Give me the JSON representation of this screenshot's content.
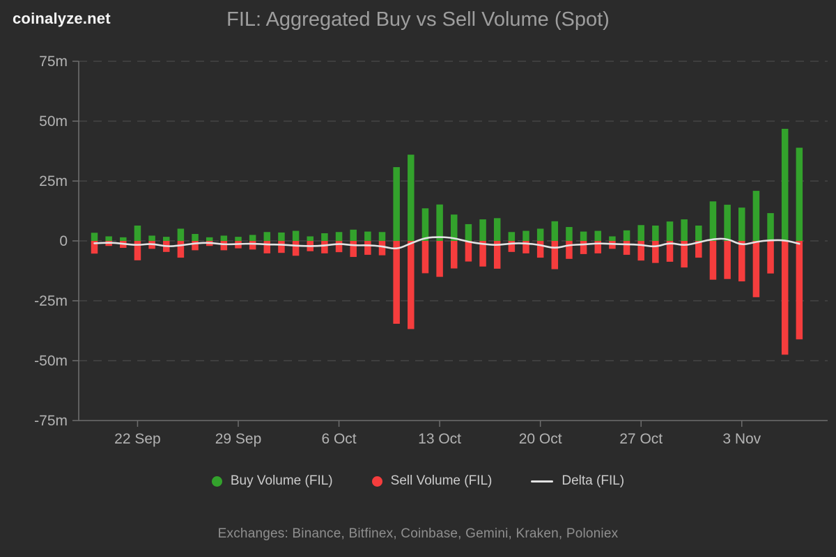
{
  "header": {
    "brand": "coinalyze.net",
    "title": "FIL: Aggregated Buy vs Sell Volume (Spot)"
  },
  "footer": {
    "text": "Exchanges: Binance, Bitfinex, Coinbase, Gemini, Kraken, Poloniex"
  },
  "colors": {
    "background": "#2b2b2b",
    "buy": "#33a22c",
    "sell": "#f53d3d",
    "delta": "#e3e3e3",
    "grid": "#454545",
    "axis": "#6e6e6e",
    "tick_label": "#b3b3b3",
    "title": "#9e9e9e",
    "brand": "#f5f5f5",
    "legend_text": "#cccccc",
    "footer_text": "#8f8f8f"
  },
  "chart_data": {
    "type": "bar",
    "title": "FIL: Aggregated Buy vs Sell Volume (Spot)",
    "unit": "millions of FIL",
    "grid": true,
    "legend_position": "bottom",
    "ylim_millions": [
      -75,
      75
    ],
    "y_ticks": [
      {
        "value": 75,
        "label": "75m"
      },
      {
        "value": 50,
        "label": "50m"
      },
      {
        "value": 25,
        "label": "25m"
      },
      {
        "value": 0,
        "label": "0"
      },
      {
        "value": -25,
        "label": "-25m"
      },
      {
        "value": -50,
        "label": "-50m"
      },
      {
        "value": -75,
        "label": "-75m"
      }
    ],
    "x": [
      "19 Sep",
      "20 Sep",
      "21 Sep",
      "22 Sep",
      "23 Sep",
      "24 Sep",
      "25 Sep",
      "26 Sep",
      "27 Sep",
      "28 Sep",
      "29 Sep",
      "30 Sep",
      "1 Oct",
      "2 Oct",
      "3 Oct",
      "4 Oct",
      "5 Oct",
      "6 Oct",
      "7 Oct",
      "8 Oct",
      "9 Oct",
      "10 Oct",
      "11 Oct",
      "12 Oct",
      "13 Oct",
      "14 Oct",
      "15 Oct",
      "16 Oct",
      "17 Oct",
      "18 Oct",
      "19 Oct",
      "20 Oct",
      "21 Oct",
      "22 Oct",
      "23 Oct",
      "24 Oct",
      "25 Oct",
      "26 Oct",
      "27 Oct",
      "28 Oct",
      "29 Oct",
      "30 Oct",
      "31 Oct",
      "1 Nov",
      "2 Nov",
      "3 Nov",
      "4 Nov",
      "5 Nov",
      "6 Nov",
      "7 Nov"
    ],
    "x_tick_indices": [
      3,
      10,
      17,
      24,
      31,
      38,
      45
    ],
    "x_tick_labels": [
      "22 Sep",
      "29 Sep",
      "6 Oct",
      "13 Oct",
      "20 Oct",
      "27 Oct",
      "3 Nov"
    ],
    "series": [
      {
        "name": "Buy Volume (FIL)",
        "type": "bar",
        "color": "#33a22c",
        "values": [
          3.4,
          1.9,
          1.5,
          6.4,
          2.2,
          1.7,
          5.1,
          2.9,
          1.5,
          2.2,
          1.7,
          2.5,
          3.7,
          3.5,
          4.2,
          1.9,
          3.2,
          3.7,
          4.7,
          3.9,
          3.7,
          30.8,
          36.0,
          13.6,
          15.2,
          11.0,
          7.0,
          9.0,
          9.5,
          3.7,
          4.2,
          5.1,
          8.2,
          5.8,
          3.9,
          4.2,
          1.9,
          4.4,
          6.6,
          6.4,
          8.1,
          9.0,
          6.4,
          16.5,
          15.1,
          13.9,
          20.9,
          11.6,
          46.8,
          38.9
        ]
      },
      {
        "name": "Sell Volume (FIL)",
        "type": "bar",
        "color": "#f53d3d",
        "values": [
          -5.3,
          -2.1,
          -2.9,
          -8.1,
          -3.3,
          -4.6,
          -7.0,
          -3.9,
          -2.1,
          -3.9,
          -3.1,
          -3.6,
          -5.2,
          -5.0,
          -6.2,
          -4.3,
          -5.2,
          -4.7,
          -6.7,
          -5.8,
          -6.0,
          -34.6,
          -36.8,
          -13.5,
          -15.0,
          -11.5,
          -8.6,
          -10.7,
          -11.6,
          -4.6,
          -5.2,
          -7.0,
          -11.8,
          -7.5,
          -5.5,
          -5.2,
          -3.3,
          -5.8,
          -8.2,
          -9.2,
          -8.7,
          -11.1,
          -7.0,
          -16.2,
          -15.9,
          -16.9,
          -23.5,
          -13.6,
          -47.5,
          -41.1
        ]
      },
      {
        "name": "Delta (FIL)",
        "type": "line",
        "color": "#e3e3e3",
        "values": [
          -1.0,
          -0.6,
          -1.2,
          -1.8,
          -1.1,
          -2.4,
          -1.9,
          -1.0,
          -0.7,
          -1.5,
          -1.3,
          -1.1,
          -1.5,
          -1.5,
          -2.0,
          -2.2,
          -2.0,
          -1.1,
          -1.9,
          -1.8,
          -2.2,
          -3.6,
          -1.0,
          1.3,
          1.7,
          1.2,
          -0.4,
          -1.3,
          -1.8,
          -1.0,
          -1.0,
          -1.7,
          -3.2,
          -1.7,
          -1.5,
          -1.0,
          -1.3,
          -1.4,
          -1.6,
          -2.6,
          -0.7,
          -2.0,
          -0.6,
          0.8,
          1.0,
          -1.9,
          -0.3,
          0.3,
          0.3,
          -1.2
        ]
      }
    ]
  }
}
